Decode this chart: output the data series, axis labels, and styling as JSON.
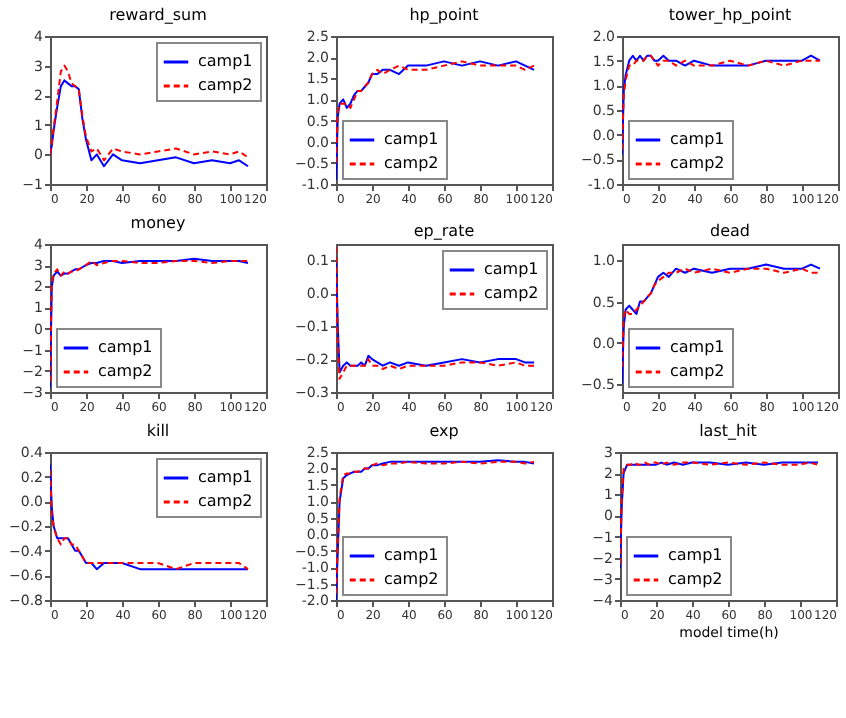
{
  "chart_data": [
    {
      "type": "line",
      "title": "reward_sum",
      "x": [
        0,
        1,
        2,
        4,
        6,
        8,
        10,
        12,
        14,
        16,
        18,
        20,
        23,
        26,
        30,
        35,
        40,
        50,
        60,
        70,
        80,
        90,
        100,
        105,
        110
      ],
      "xlim": [
        0,
        120
      ],
      "xticks": [
        0,
        20,
        40,
        60,
        80,
        100,
        120
      ],
      "ylim": [
        -1,
        4
      ],
      "yticks": [
        -1,
        0,
        1,
        2,
        3,
        4
      ],
      "legend": "top right",
      "grid": false,
      "series": [
        {
          "name": "camp1",
          "color": "#0000ff",
          "line_style": "solid",
          "values": [
            0,
            0.3,
            0.8,
            1.6,
            2.3,
            2.5,
            2.4,
            2.3,
            2.3,
            2.2,
            1.2,
            0.5,
            -0.2,
            0.0,
            -0.4,
            0.0,
            -0.2,
            -0.3,
            -0.2,
            -0.1,
            -0.3,
            -0.2,
            -0.3,
            -0.2,
            -0.4
          ]
        },
        {
          "name": "camp2",
          "color": "#ff0000",
          "line_style": "dashed",
          "values": [
            0,
            0.4,
            0.9,
            1.8,
            2.8,
            3.0,
            2.8,
            2.4,
            2.3,
            2.2,
            1.3,
            0.6,
            0.1,
            0.2,
            -0.2,
            0.2,
            0.1,
            0.0,
            0.1,
            0.2,
            0.0,
            0.1,
            0.0,
            0.1,
            -0.1
          ]
        }
      ]
    },
    {
      "type": "line",
      "title": "hp_point",
      "x": [
        0,
        1,
        2,
        4,
        6,
        8,
        10,
        12,
        14,
        16,
        18,
        20,
        23,
        26,
        30,
        35,
        40,
        50,
        60,
        70,
        80,
        90,
        100,
        105,
        110
      ],
      "xlim": [
        0,
        120
      ],
      "xticks": [
        0,
        20,
        40,
        60,
        80,
        100,
        120
      ],
      "ylim": [
        -1,
        2.5
      ],
      "yticks": [
        {
          "value": -1,
          "label": "-1.0"
        },
        -0.5,
        {
          "value": 0,
          "label": "0.0"
        },
        0.5,
        {
          "value": 1,
          "label": "1.0"
        },
        1.5,
        {
          "value": 2,
          "label": "2.0"
        },
        2.5
      ],
      "legend": "bottom left",
      "grid": false,
      "series": [
        {
          "name": "camp1",
          "color": "#0000ff",
          "line_style": "solid",
          "values": [
            -0.9,
            0.6,
            0.9,
            1.0,
            0.8,
            0.9,
            1.1,
            1.2,
            1.2,
            1.3,
            1.4,
            1.6,
            1.6,
            1.7,
            1.7,
            1.6,
            1.8,
            1.8,
            1.9,
            1.8,
            1.9,
            1.8,
            1.9,
            1.8,
            1.7
          ]
        },
        {
          "name": "camp2",
          "color": "#ff0000",
          "line_style": "dashed",
          "values": [
            -0.5,
            0.7,
            0.9,
            0.9,
            0.9,
            0.8,
            1.0,
            1.2,
            1.2,
            1.3,
            1.4,
            1.6,
            1.7,
            1.6,
            1.7,
            1.8,
            1.7,
            1.7,
            1.8,
            1.9,
            1.8,
            1.8,
            1.8,
            1.7,
            1.8
          ]
        }
      ]
    },
    {
      "type": "line",
      "title": "tower_hp_point",
      "x": [
        0,
        1,
        2,
        4,
        6,
        8,
        10,
        12,
        14,
        16,
        18,
        20,
        23,
        26,
        30,
        35,
        40,
        50,
        60,
        70,
        80,
        90,
        100,
        105,
        110
      ],
      "xlim": [
        0,
        120
      ],
      "xticks": [
        0,
        20,
        40,
        60,
        80,
        100,
        120
      ],
      "ylim": [
        -1,
        2
      ],
      "yticks": [
        {
          "value": -1,
          "label": "-1.0"
        },
        -0.5,
        {
          "value": 0,
          "label": "0.0"
        },
        0.5,
        {
          "value": 1,
          "label": "1.0"
        },
        1.5,
        {
          "value": 2,
          "label": "2.0"
        }
      ],
      "legend": "bottom left",
      "grid": false,
      "series": [
        {
          "name": "camp1",
          "color": "#0000ff",
          "line_style": "solid",
          "values": [
            -0.4,
            0.9,
            1.2,
            1.5,
            1.6,
            1.5,
            1.6,
            1.5,
            1.6,
            1.6,
            1.5,
            1.5,
            1.6,
            1.5,
            1.5,
            1.4,
            1.5,
            1.4,
            1.4,
            1.4,
            1.5,
            1.5,
            1.5,
            1.6,
            1.5
          ]
        },
        {
          "name": "camp2",
          "color": "#ff0000",
          "line_style": "dashed",
          "values": [
            -0.3,
            0.8,
            1.1,
            1.4,
            1.4,
            1.5,
            1.5,
            1.5,
            1.6,
            1.6,
            1.5,
            1.4,
            1.5,
            1.5,
            1.4,
            1.5,
            1.4,
            1.4,
            1.5,
            1.4,
            1.5,
            1.4,
            1.5,
            1.5,
            1.5
          ]
        }
      ]
    },
    {
      "type": "line",
      "title": "money",
      "x": [
        0,
        1,
        2,
        4,
        6,
        8,
        10,
        12,
        14,
        16,
        18,
        20,
        23,
        26,
        30,
        35,
        40,
        50,
        60,
        70,
        80,
        90,
        100,
        105,
        110
      ],
      "xlim": [
        0,
        120
      ],
      "xticks": [
        0,
        20,
        40,
        60,
        80,
        100,
        120
      ],
      "ylim": [
        -3,
        4
      ],
      "yticks": [
        -3,
        -2,
        -1,
        0,
        1,
        2,
        3,
        4
      ],
      "legend": "bottom left",
      "grid": false,
      "series": [
        {
          "name": "camp1",
          "color": "#0000ff",
          "line_style": "solid",
          "values": [
            -2.8,
            2.0,
            2.5,
            2.7,
            2.5,
            2.6,
            2.6,
            2.7,
            2.8,
            2.8,
            2.9,
            3.0,
            3.1,
            3.1,
            3.2,
            3.2,
            3.1,
            3.2,
            3.2,
            3.2,
            3.3,
            3.2,
            3.2,
            3.2,
            3.1
          ]
        },
        {
          "name": "camp2",
          "color": "#ff0000",
          "line_style": "dashed",
          "values": [
            -2.5,
            2.1,
            2.6,
            2.8,
            2.5,
            2.7,
            2.6,
            2.7,
            2.7,
            2.8,
            2.9,
            3.0,
            3.2,
            3.0,
            3.1,
            3.2,
            3.2,
            3.1,
            3.1,
            3.2,
            3.2,
            3.1,
            3.2,
            3.2,
            3.2
          ]
        }
      ]
    },
    {
      "type": "line",
      "title": "ep_rate",
      "x": [
        0,
        1,
        2,
        4,
        6,
        8,
        10,
        12,
        14,
        16,
        18,
        20,
        23,
        26,
        30,
        35,
        40,
        50,
        60,
        70,
        80,
        90,
        100,
        105,
        110
      ],
      "xlim": [
        0,
        120
      ],
      "xticks": [
        0,
        20,
        40,
        60,
        80,
        100,
        120
      ],
      "ylim": [
        -0.3,
        0.15
      ],
      "yticks": [
        -0.3,
        -0.2,
        -0.1,
        {
          "value": 0,
          "label": "0.0"
        },
        0.1
      ],
      "legend": "top right",
      "grid": false,
      "series": [
        {
          "name": "camp1",
          "color": "#0000ff",
          "line_style": "solid",
          "values": [
            0.11,
            -0.1,
            -0.24,
            -0.22,
            -0.21,
            -0.22,
            -0.22,
            -0.22,
            -0.21,
            -0.22,
            -0.19,
            -0.2,
            -0.21,
            -0.22,
            -0.21,
            -0.22,
            -0.21,
            -0.22,
            -0.21,
            -0.2,
            -0.21,
            -0.2,
            -0.2,
            -0.21,
            -0.21
          ]
        },
        {
          "name": "camp2",
          "color": "#ff0000",
          "line_style": "dashed",
          "values": [
            0.14,
            -0.15,
            -0.26,
            -0.24,
            -0.22,
            -0.22,
            -0.22,
            -0.22,
            -0.22,
            -0.22,
            -0.2,
            -0.22,
            -0.22,
            -0.23,
            -0.22,
            -0.23,
            -0.22,
            -0.22,
            -0.22,
            -0.21,
            -0.21,
            -0.22,
            -0.21,
            -0.22,
            -0.22
          ]
        }
      ]
    },
    {
      "type": "line",
      "title": "dead",
      "x": [
        0,
        1,
        2,
        4,
        6,
        8,
        10,
        12,
        14,
        16,
        18,
        20,
        23,
        26,
        30,
        35,
        40,
        50,
        60,
        70,
        80,
        90,
        100,
        105,
        110
      ],
      "xlim": [
        0,
        120
      ],
      "xticks": [
        0,
        20,
        40,
        60,
        80,
        100,
        120
      ],
      "ylim": [
        -0.6,
        1.2
      ],
      "yticks": [
        -0.5,
        {
          "value": 0,
          "label": "0.0"
        },
        0.5,
        {
          "value": 1,
          "label": "1.0"
        }
      ],
      "legend": "bottom left",
      "grid": false,
      "series": [
        {
          "name": "camp1",
          "color": "#0000ff",
          "line_style": "solid",
          "values": [
            -0.5,
            0.2,
            0.4,
            0.45,
            0.4,
            0.35,
            0.5,
            0.5,
            0.55,
            0.6,
            0.7,
            0.8,
            0.85,
            0.8,
            0.9,
            0.85,
            0.9,
            0.85,
            0.9,
            0.9,
            0.95,
            0.9,
            0.9,
            0.95,
            0.9
          ]
        },
        {
          "name": "camp2",
          "color": "#ff0000",
          "line_style": "dashed",
          "values": [
            -0.3,
            0.3,
            0.4,
            0.35,
            0.35,
            0.4,
            0.45,
            0.5,
            0.55,
            0.6,
            0.7,
            0.75,
            0.8,
            0.85,
            0.85,
            0.9,
            0.85,
            0.9,
            0.85,
            0.9,
            0.9,
            0.85,
            0.9,
            0.85,
            0.85
          ]
        }
      ]
    },
    {
      "type": "line",
      "title": "kill",
      "x": [
        0,
        1,
        2,
        4,
        6,
        8,
        10,
        12,
        14,
        16,
        18,
        20,
        23,
        26,
        30,
        35,
        40,
        50,
        60,
        70,
        80,
        90,
        100,
        105,
        110
      ],
      "xlim": [
        0,
        120
      ],
      "xticks": [
        0,
        20,
        40,
        60,
        80,
        100,
        120
      ],
      "ylim": [
        -0.8,
        0.4
      ],
      "yticks": [
        -0.8,
        -0.6,
        -0.4,
        -0.2,
        {
          "value": 0,
          "label": "0.0"
        },
        0.2,
        0.4
      ],
      "legend": "top right",
      "grid": false,
      "series": [
        {
          "name": "camp1",
          "color": "#0000ff",
          "line_style": "solid",
          "values": [
            0.3,
            -0.05,
            -0.2,
            -0.3,
            -0.3,
            -0.3,
            -0.3,
            -0.35,
            -0.4,
            -0.4,
            -0.45,
            -0.5,
            -0.5,
            -0.55,
            -0.5,
            -0.5,
            -0.5,
            -0.55,
            -0.55,
            -0.55,
            -0.55,
            -0.55,
            -0.55,
            -0.55,
            -0.55
          ]
        },
        {
          "name": "camp2",
          "color": "#ff0000",
          "line_style": "dashed",
          "values": [
            0.25,
            -0.1,
            -0.2,
            -0.3,
            -0.35,
            -0.3,
            -0.3,
            -0.35,
            -0.35,
            -0.4,
            -0.45,
            -0.5,
            -0.5,
            -0.5,
            -0.5,
            -0.5,
            -0.5,
            -0.5,
            -0.5,
            -0.55,
            -0.5,
            -0.5,
            -0.5,
            -0.5,
            -0.55
          ]
        }
      ]
    },
    {
      "type": "line",
      "title": "exp",
      "x": [
        0,
        1,
        2,
        4,
        6,
        8,
        10,
        12,
        14,
        16,
        18,
        20,
        23,
        26,
        30,
        35,
        40,
        50,
        60,
        70,
        80,
        90,
        100,
        105,
        110
      ],
      "xlim": [
        0,
        120
      ],
      "xticks": [
        0,
        20,
        40,
        60,
        80,
        100,
        120
      ],
      "ylim": [
        -2,
        2.5
      ],
      "yticks": [
        {
          "value": -2,
          "label": "-2.0"
        },
        -1.5,
        {
          "value": -1,
          "label": "-1.0"
        },
        -0.5,
        {
          "value": 0,
          "label": "0.0"
        },
        0.5,
        {
          "value": 1,
          "label": "1.0"
        },
        1.5,
        {
          "value": 2,
          "label": "2.0"
        },
        2.5
      ],
      "legend": "bottom left",
      "grid": false,
      "series": [
        {
          "name": "camp1",
          "color": "#0000ff",
          "line_style": "solid",
          "values": [
            -2.0,
            -0.5,
            1.0,
            1.7,
            1.8,
            1.85,
            1.9,
            1.9,
            1.9,
            2.0,
            2.0,
            2.1,
            2.1,
            2.15,
            2.2,
            2.2,
            2.2,
            2.2,
            2.2,
            2.2,
            2.2,
            2.25,
            2.2,
            2.2,
            2.15
          ]
        },
        {
          "name": "camp2",
          "color": "#ff0000",
          "line_style": "dashed",
          "values": [
            -1.8,
            -0.3,
            1.1,
            1.8,
            1.85,
            1.85,
            1.9,
            1.9,
            1.95,
            2.0,
            2.0,
            2.1,
            2.15,
            2.1,
            2.15,
            2.15,
            2.2,
            2.15,
            2.15,
            2.2,
            2.15,
            2.2,
            2.2,
            2.15,
            2.2
          ]
        }
      ]
    },
    {
      "type": "line",
      "title": "last_hit",
      "xlabel": "model time(h)",
      "x": [
        0,
        1,
        2,
        4,
        6,
        8,
        10,
        12,
        14,
        16,
        18,
        20,
        23,
        26,
        30,
        35,
        40,
        50,
        60,
        70,
        80,
        90,
        100,
        105,
        110
      ],
      "xlim": [
        0,
        120
      ],
      "xticks": [
        0,
        20,
        40,
        60,
        80,
        100,
        120
      ],
      "ylim": [
        -4,
        3
      ],
      "yticks": [
        -4,
        -3,
        -2,
        -1,
        0,
        1,
        2,
        3
      ],
      "legend": "bottom left",
      "grid": false,
      "series": [
        {
          "name": "camp1",
          "color": "#0000ff",
          "line_style": "solid",
          "values": [
            -2.5,
            0.5,
            2.0,
            2.4,
            2.4,
            2.4,
            2.4,
            2.4,
            2.4,
            2.4,
            2.4,
            2.4,
            2.5,
            2.4,
            2.5,
            2.4,
            2.5,
            2.5,
            2.4,
            2.5,
            2.4,
            2.5,
            2.5,
            2.5,
            2.5
          ]
        },
        {
          "name": "camp2",
          "color": "#ff0000",
          "line_style": "dashed",
          "values": [
            -2.3,
            0.8,
            2.2,
            2.4,
            2.4,
            2.5,
            2.4,
            2.4,
            2.5,
            2.4,
            2.5,
            2.5,
            2.4,
            2.5,
            2.4,
            2.5,
            2.5,
            2.4,
            2.5,
            2.4,
            2.5,
            2.4,
            2.4,
            2.5,
            2.4
          ]
        }
      ]
    }
  ]
}
